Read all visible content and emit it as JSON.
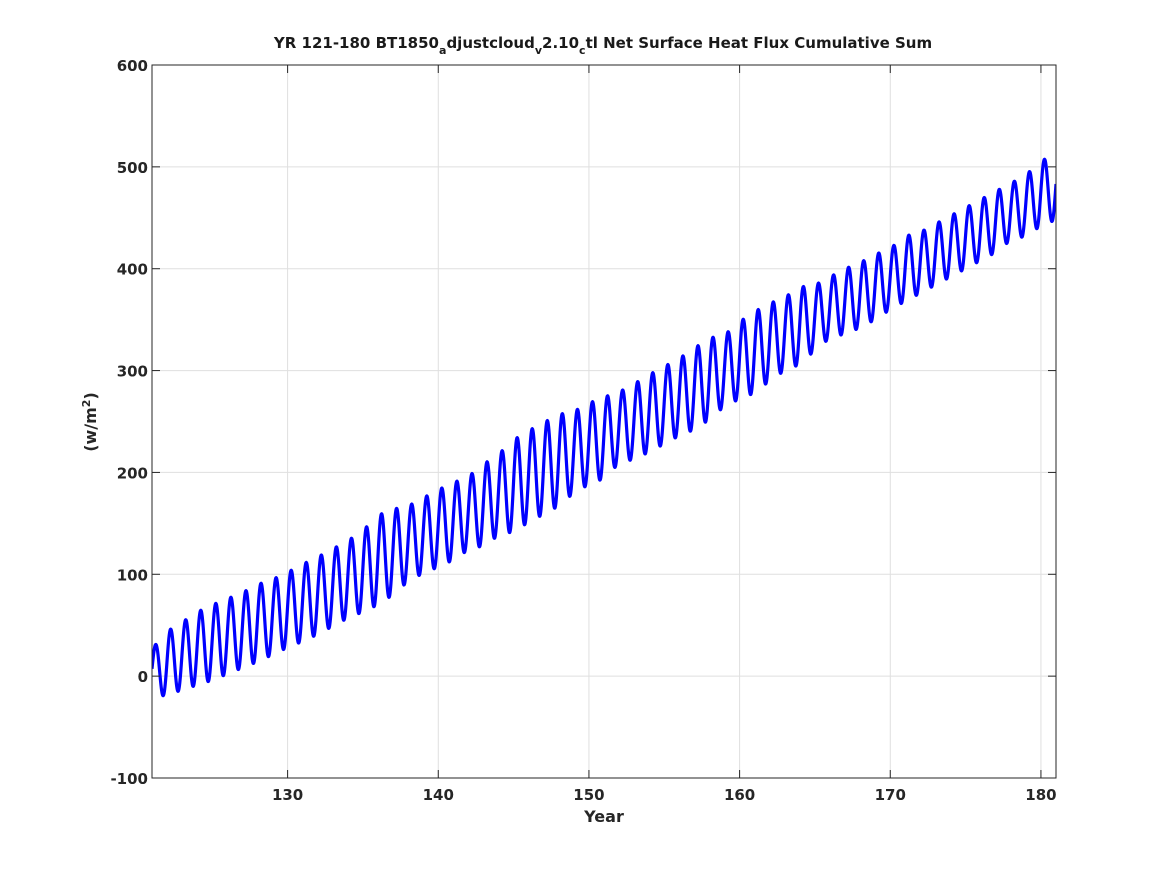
{
  "chart_data": {
    "type": "line",
    "title_parts": {
      "p1": "YR 121-180 BT1850",
      "s1": "a",
      "p2": "djustcloud",
      "s2": "v",
      "p3": "2.10",
      "s3": "c",
      "p4": "tl Net Surface Heat Flux  Cumulative Sum"
    },
    "xlabel": "Year",
    "ylabel_parts": {
      "base": "(w/m",
      "sup": "2",
      "close": ")"
    },
    "xlim": [
      121,
      181
    ],
    "ylim": [
      -100,
      600
    ],
    "xticks": [
      130,
      140,
      150,
      160,
      170,
      180
    ],
    "yticks": [
      -100,
      0,
      100,
      200,
      300,
      400,
      500,
      600
    ],
    "grid": true,
    "line_color": "#0000ff",
    "series": [
      {
        "x": [
          121,
          122,
          123,
          124,
          125,
          126,
          127,
          128,
          129,
          130,
          131,
          132,
          133,
          134,
          135,
          136,
          137,
          138,
          139,
          140,
          141,
          142,
          143,
          144,
          145,
          146,
          147,
          148,
          149,
          150,
          151,
          152,
          153,
          154,
          155,
          156,
          157,
          158,
          159,
          160,
          161,
          162,
          163,
          164,
          165,
          166,
          167,
          168,
          169,
          170,
          171,
          172,
          173,
          174,
          175,
          176,
          177,
          178,
          179,
          180,
          181
        ],
        "mean": [
          5,
          12,
          20,
          27,
          33,
          39,
          45,
          52,
          58,
          65,
          72,
          79,
          87,
          95,
          103,
          114,
          122,
          130,
          138,
          145,
          152,
          160,
          168,
          178,
          187,
          196,
          204,
          212,
          220,
          228,
          234,
          244,
          250,
          258,
          266,
          274,
          282,
          292,
          300,
          310,
          318,
          328,
          336,
          344,
          352,
          362,
          368,
          374,
          382,
          390,
          400,
          406,
          414,
          422,
          430,
          438,
          446,
          456,
          462,
          474,
          480
        ],
        "amp": [
          22,
          32,
          33,
          36,
          37,
          37,
          37,
          38,
          37,
          37,
          38,
          38,
          38,
          38,
          40,
          44,
          42,
          37,
          37,
          38,
          38,
          36,
          40,
          40,
          45,
          45,
          45,
          45,
          40,
          40,
          40,
          35,
          37,
          38,
          38,
          38,
          40,
          40,
          35,
          38,
          40,
          38,
          36,
          38,
          32,
          30,
          32,
          32,
          32,
          30,
          32,
          30,
          30,
          30,
          30,
          30,
          30,
          28,
          30,
          32,
          32
        ]
      }
    ]
  }
}
